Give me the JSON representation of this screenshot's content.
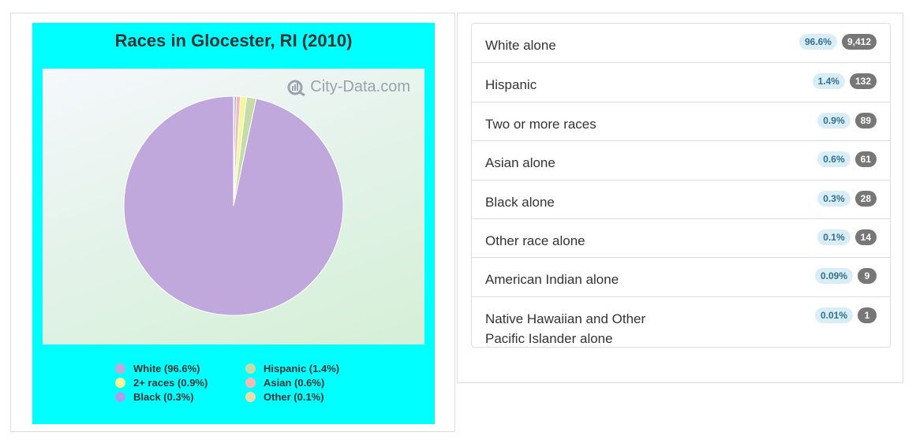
{
  "chart_data": {
    "type": "pie",
    "title": "Races in Glocester, RI (2010)",
    "watermark": "City-Data.com",
    "slices": [
      {
        "label": "White",
        "percent": 96.6,
        "color": "#c0a8dc"
      },
      {
        "label": "Hispanic",
        "percent": 1.4,
        "color": "#c6dca8"
      },
      {
        "label": "2+ races",
        "percent": 0.9,
        "color": "#f6f69a"
      },
      {
        "label": "Asian",
        "percent": 0.6,
        "color": "#f4b8b8"
      },
      {
        "label": "Black",
        "percent": 0.3,
        "color": "#a8a0ec"
      },
      {
        "label": "Other",
        "percent": 0.1,
        "color": "#ecdcac"
      }
    ],
    "legend": [
      {
        "text": "White (96.6%)",
        "color": "#c0a8dc"
      },
      {
        "text": "Hispanic (1.4%)",
        "color": "#c6dca8"
      },
      {
        "text": "2+ races (0.9%)",
        "color": "#f6f69a"
      },
      {
        "text": "Asian (0.6%)",
        "color": "#f4b8b8"
      },
      {
        "text": "Black (0.3%)",
        "color": "#a8a0ec"
      },
      {
        "text": "Other (0.1%)",
        "color": "#ecdcac"
      }
    ],
    "background": "#00ffff"
  },
  "races_list": [
    {
      "label": "White alone",
      "percent": "96.6%",
      "count": "9,412"
    },
    {
      "label": "Hispanic",
      "percent": "1.4%",
      "count": "132"
    },
    {
      "label": "Two or more races",
      "percent": "0.9%",
      "count": "89"
    },
    {
      "label": "Asian alone",
      "percent": "0.6%",
      "count": "61"
    },
    {
      "label": "Black alone",
      "percent": "0.3%",
      "count": "28"
    },
    {
      "label": "Other race alone",
      "percent": "0.1%",
      "count": "14"
    },
    {
      "label": "American Indian alone",
      "percent": "0.09%",
      "count": "9"
    },
    {
      "label": "Native Hawaiian and Other Pacific Islander alone",
      "percent": "0.01%",
      "count": "1"
    }
  ]
}
